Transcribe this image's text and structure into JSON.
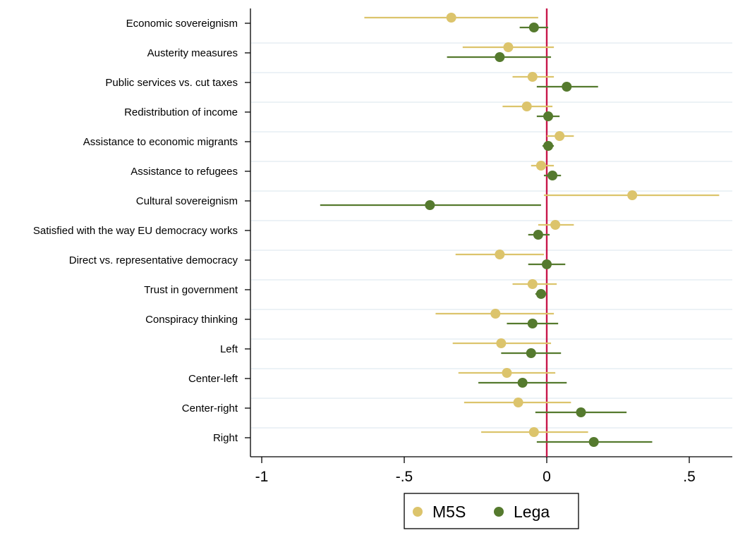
{
  "chart_data": {
    "type": "scatter",
    "subtype": "coefficient-plot-horizontal",
    "title": "",
    "xlabel": "",
    "ylabel": "",
    "xlim": [
      -1.02,
      0.63
    ],
    "xticks": [
      -1,
      -0.5,
      0,
      0.5
    ],
    "xtick_labels": [
      "-1",
      "-.5",
      "0",
      ".5"
    ],
    "reference_line": {
      "x": 0,
      "color": "#c8174a"
    },
    "grid": "horizontal",
    "legend_position": "bottom",
    "categories": [
      "Economic sovereignism",
      "Austerity measures",
      "Public services vs. cut taxes",
      "Redistribution of income",
      "Assistance to economic migrants",
      "Assistance to refugees",
      "Cultural sovereignism",
      "Satisfied with the way EU democracy works",
      "Direct vs. representative democracy",
      "Trust in government",
      "Conspiracy thinking",
      "Left",
      "Center-left",
      "Center-right",
      "Right"
    ],
    "series": [
      {
        "name": "M5S",
        "color": "#dcc46c",
        "estimates": [
          -0.335,
          -0.135,
          -0.05,
          -0.07,
          0.045,
          -0.02,
          0.3,
          0.03,
          -0.165,
          -0.05,
          -0.18,
          -0.16,
          -0.14,
          -0.1,
          -0.045
        ],
        "ci_low": [
          -0.64,
          -0.295,
          -0.12,
          -0.155,
          0.0,
          -0.055,
          -0.01,
          -0.03,
          -0.32,
          -0.12,
          -0.39,
          -0.33,
          -0.31,
          -0.29,
          -0.23
        ],
        "ci_high": [
          -0.03,
          0.025,
          0.025,
          0.02,
          0.095,
          0.025,
          0.605,
          0.095,
          -0.01,
          0.035,
          0.025,
          0.015,
          0.03,
          0.085,
          0.145
        ]
      },
      {
        "name": "Lega",
        "color": "#557a2e",
        "estimates": [
          -0.045,
          -0.165,
          0.07,
          0.005,
          0.005,
          0.02,
          -0.41,
          -0.03,
          0.0,
          -0.02,
          -0.05,
          -0.055,
          -0.085,
          0.12,
          0.165
        ],
        "ci_low": [
          -0.095,
          -0.35,
          -0.035,
          -0.035,
          -0.015,
          -0.01,
          -0.795,
          -0.065,
          -0.065,
          -0.04,
          -0.14,
          -0.16,
          -0.24,
          -0.04,
          -0.035
        ],
        "ci_high": [
          0.005,
          0.015,
          0.18,
          0.045,
          0.025,
          0.05,
          -0.02,
          0.01,
          0.065,
          0.0,
          0.04,
          0.05,
          0.07,
          0.28,
          0.37
        ]
      }
    ]
  }
}
